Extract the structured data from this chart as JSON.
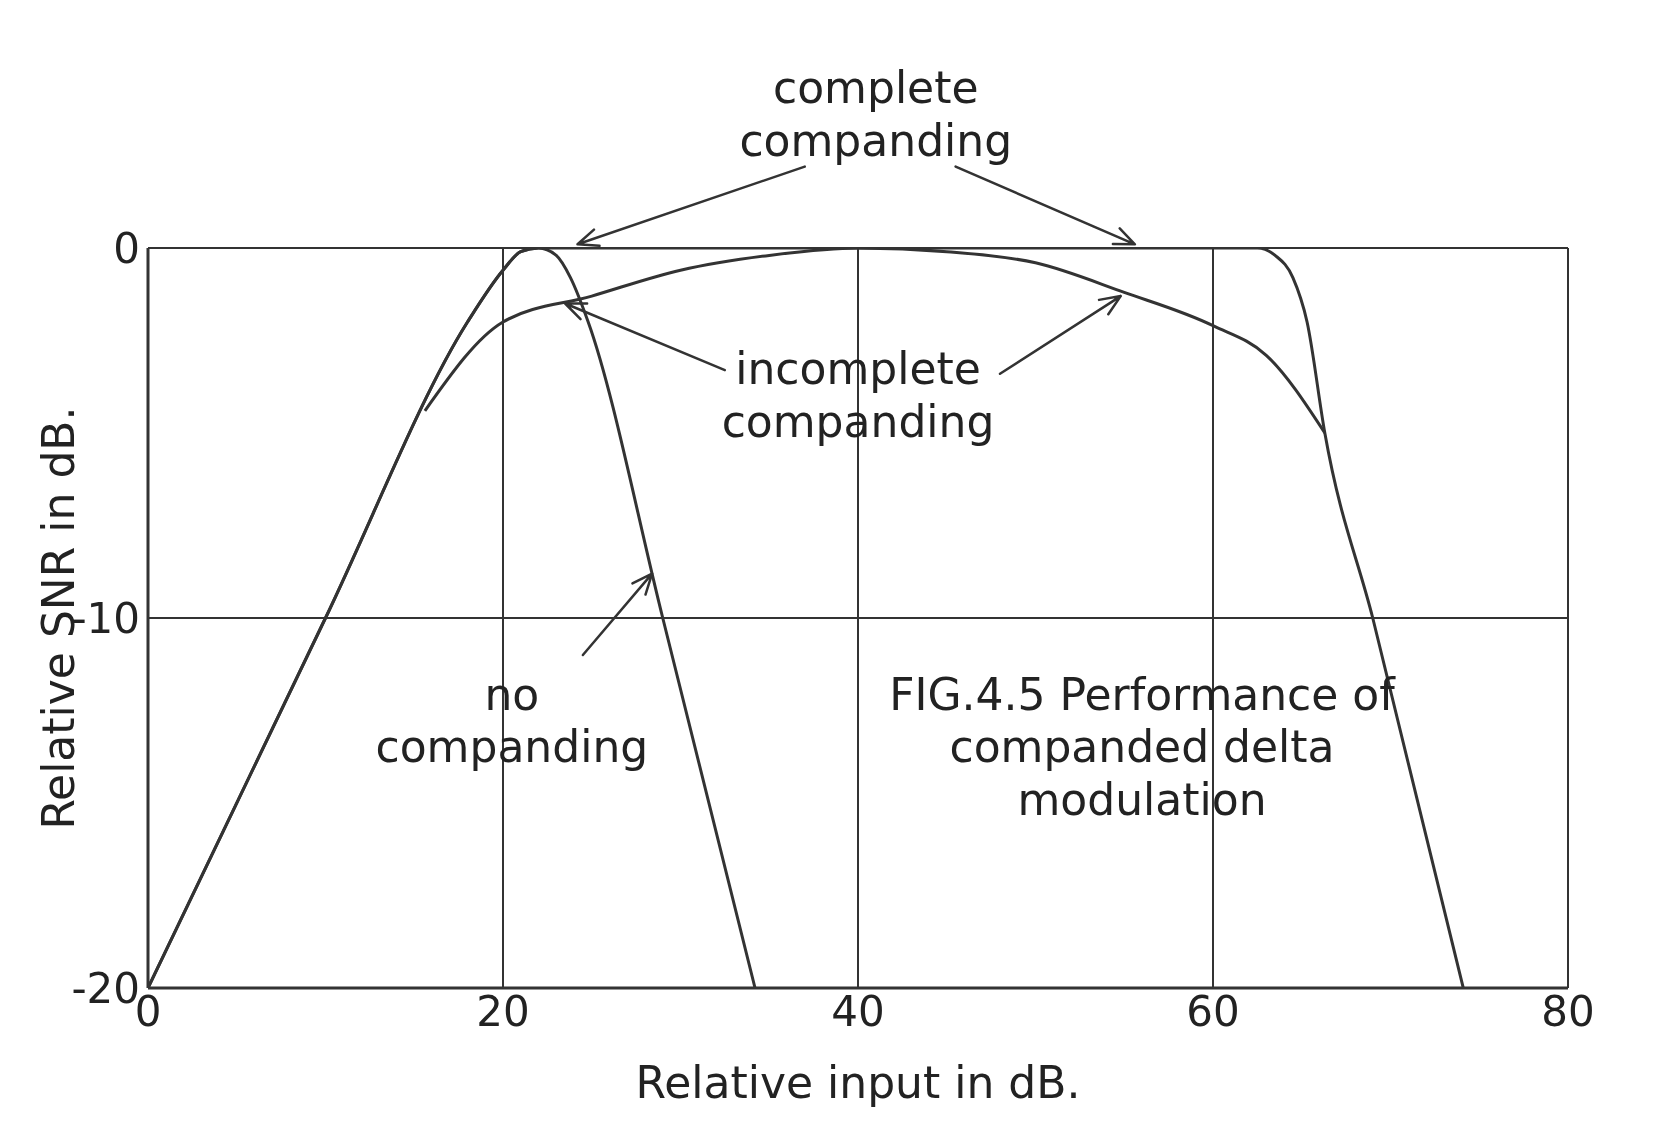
{
  "chart_data": {
    "type": "line",
    "xlabel": "Relative input in dB.",
    "ylabel": "Relative SNR in dB.",
    "xlim": [
      0,
      80
    ],
    "xticks": [
      0,
      20,
      40,
      60,
      80
    ],
    "ylim": [
      -20,
      0
    ],
    "yticks": [
      -20,
      -10,
      0
    ],
    "grid": true,
    "series": [
      {
        "color": "#333333",
        "x": [
          0,
          10,
          18,
          20,
          21,
          22,
          23,
          23.8,
          24.8,
          29,
          34.2
        ],
        "values": [
          -20,
          -10,
          -2,
          -0.6,
          -0.1,
          0,
          -0.2,
          -0.8,
          -2,
          -10,
          -20
        ]
      },
      {
        "color": "#333333",
        "x": [
          0,
          10,
          18,
          20,
          21,
          22,
          40,
          62.5,
          63.5,
          64.5,
          65.3,
          66.3,
          69,
          74.1
        ],
        "values": [
          -20,
          -10,
          -2,
          -0.6,
          -0.1,
          0,
          0,
          0,
          -0.2,
          -0.8,
          -2,
          -5,
          -10,
          -20
        ]
      },
      {
        "color": "#333333",
        "x": [
          15.6,
          20,
          25,
          30,
          35,
          40,
          45,
          50,
          55,
          60,
          63,
          66.3
        ],
        "values": [
          -4.4,
          -2,
          -1.3,
          -0.6,
          -0.2,
          0,
          -0.1,
          -0.4,
          -1.2,
          -2.1,
          -2.9,
          -5
        ]
      }
    ],
    "annotations": [
      "complete companding",
      {
        "text": "incomplete companding",
        "x": 23.5,
        "y": -1.5
      },
      {
        "text": "no companding",
        "x": 28.4,
        "y": -8.8
      },
      "FIG.4.5 Performance of companded delta modulation"
    ]
  }
}
